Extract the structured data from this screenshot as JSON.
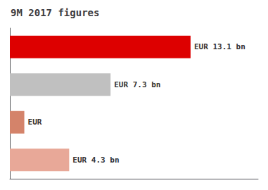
{
  "chart_data": {
    "type": "bar",
    "orientation": "horizontal",
    "title": "9M 2017 figures",
    "categories": [
      null,
      null,
      null,
      null
    ],
    "values": [
      13.1,
      7.3,
      1.05,
      4.3
    ],
    "value_labels": [
      "EUR 13.1 bn",
      "EUR 7.3 bn",
      "EUR",
      "EUR 4.3 bn"
    ],
    "data_labels": true,
    "colors": [
      "#dd0000",
      "#c0c0c0",
      "#d4836a",
      "#e8a898"
    ],
    "xlim": [
      0,
      18
    ],
    "tick_labels": false,
    "grid": false
  }
}
